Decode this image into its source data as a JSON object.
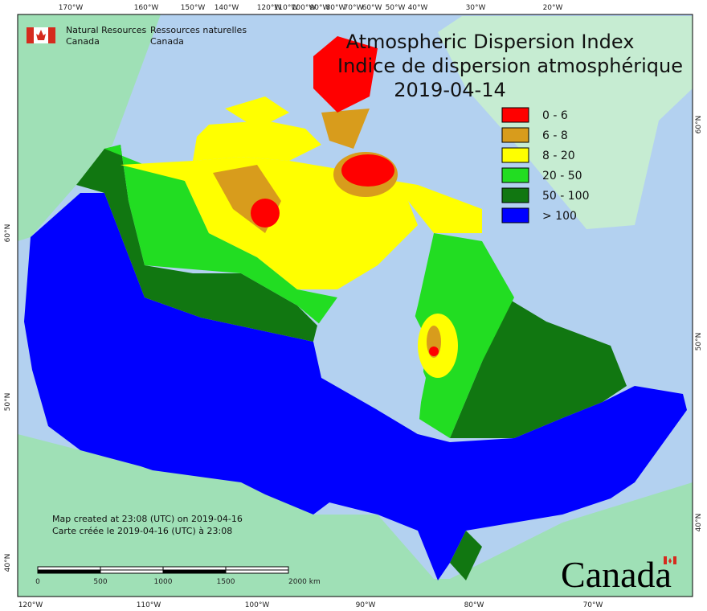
{
  "agency": {
    "en": [
      "Natural Resources",
      "Canada"
    ],
    "fr": [
      "Ressources naturelles",
      "Canada"
    ]
  },
  "title": [
    "Atmospheric Dispersion Index",
    "Indice de dispersion atmosphérique",
    "2019-04-14"
  ],
  "legend": [
    {
      "label": "0 - 6",
      "color": "#ff0000"
    },
    {
      "label": "6 - 8",
      "color": "#d89c1c"
    },
    {
      "label": "8 - 20",
      "color": "#ffff00"
    },
    {
      "label": "20 - 50",
      "color": "#22dd22"
    },
    {
      "label": "50 - 100",
      "color": "#117711"
    },
    {
      "label": "> 100",
      "color": "#0000ff"
    }
  ],
  "graticule": {
    "top": [
      "170°W",
      "160°W",
      "150°W",
      "140°W",
      "120°W",
      "110°W",
      "100°W",
      "90°W",
      "80°W",
      "70°W",
      "60°W",
      "50°W",
      "40°W",
      "30°W",
      "20°W"
    ],
    "bottom": [
      "120°W",
      "110°W",
      "100°W",
      "90°W",
      "80°W",
      "70°W"
    ],
    "left": [
      "60°N",
      "50°N",
      "40°N"
    ],
    "right": [
      "60°N",
      "50°N",
      "40°N"
    ]
  },
  "notes": [
    "Map created at 23:08 (UTC) on 2019-04-16",
    "Carte créée le 2019-04-16 (UTC) à 23:08"
  ],
  "scale": [
    "0",
    "500",
    "1000",
    "1500",
    "2000 km"
  ],
  "wordmark": "Canada"
}
